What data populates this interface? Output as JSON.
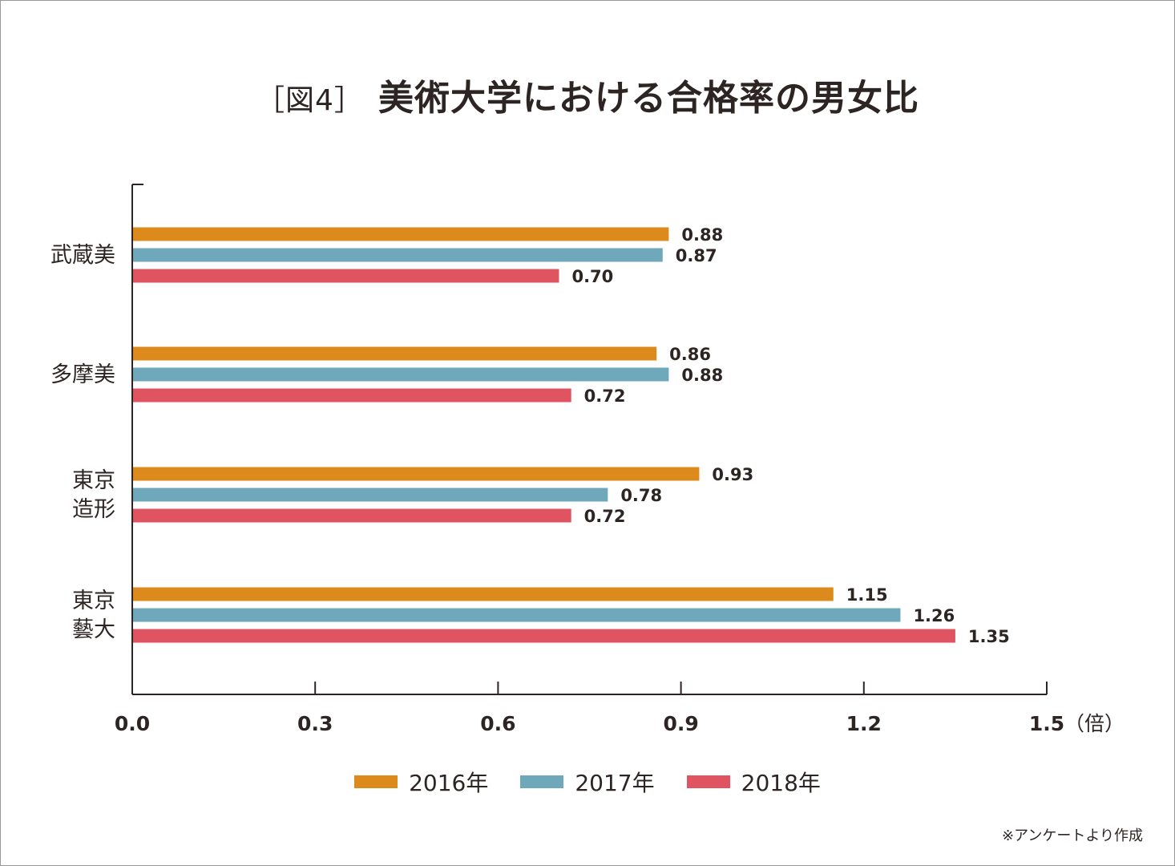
{
  "title_prefix": "［図4］",
  "title_main": "美術大学における合格率の男女比",
  "note": "※アンケートより作成",
  "chart_data": {
    "type": "bar",
    "orientation": "horizontal",
    "categories": [
      [
        "武蔵美"
      ],
      [
        "多摩美"
      ],
      [
        "東京",
        "造形"
      ],
      [
        "東京",
        "藝大"
      ]
    ],
    "series": [
      {
        "name": "2016年",
        "color": "#dc8a1c",
        "values": [
          0.88,
          0.86,
          0.93,
          1.15
        ]
      },
      {
        "name": "2017年",
        "color": "#6fa8bb",
        "values": [
          0.87,
          0.88,
          0.78,
          1.26
        ]
      },
      {
        "name": "2018年",
        "color": "#e05462",
        "values": [
          0.7,
          0.72,
          0.72,
          1.35
        ]
      }
    ],
    "value_labels": [
      [
        "0.88",
        "0.86",
        "0.93",
        "1.15"
      ],
      [
        "0.87",
        "0.88",
        "0.78",
        "1.26"
      ],
      [
        "0.70",
        "0.72",
        "0.72",
        "1.35"
      ]
    ],
    "xlim": [
      0,
      1.5
    ],
    "xticks": [
      "0.0",
      "0.3",
      "0.6",
      "0.9",
      "1.2",
      "1.5"
    ],
    "x_unit": "（倍）",
    "legend_position": "bottom"
  }
}
